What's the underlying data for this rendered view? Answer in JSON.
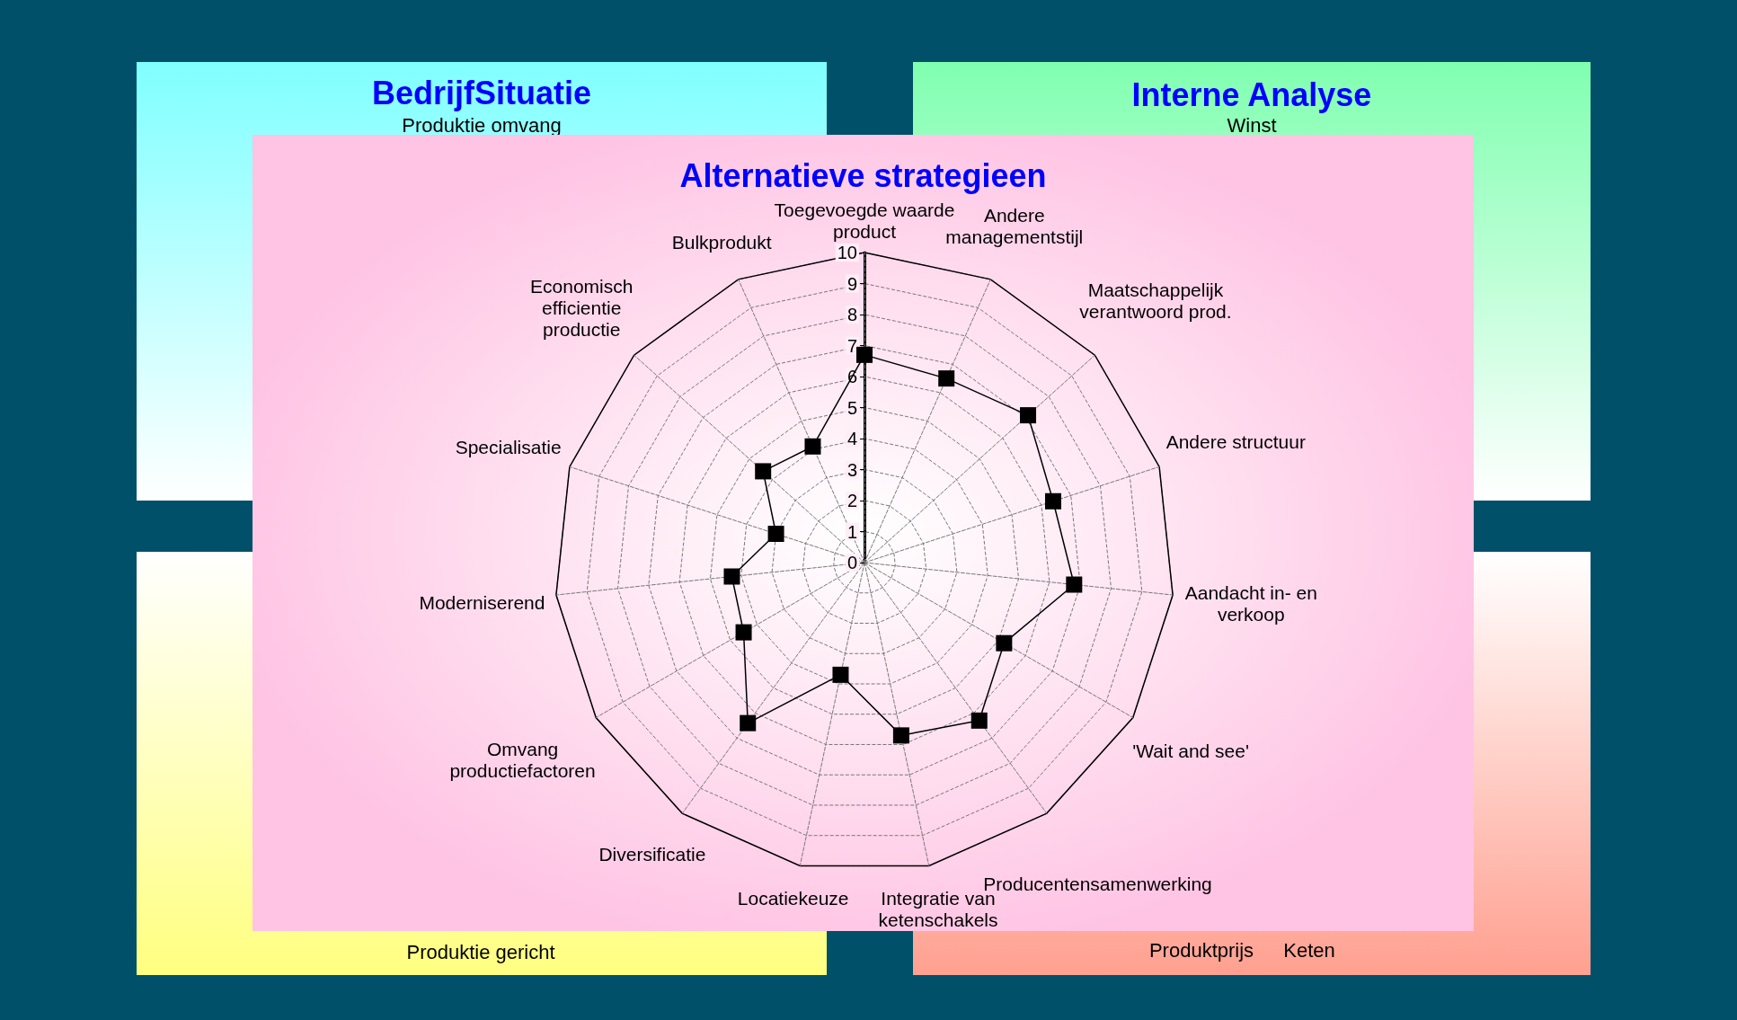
{
  "chart_data": [
    {
      "type": "other",
      "title": "BedrijfSituatie",
      "annotations": [
        "Produktie omvang"
      ]
    },
    {
      "type": "other",
      "title": "Interne Analyse",
      "annotations": [
        "Winst"
      ]
    },
    {
      "type": "radar",
      "title": "Alternatieve strategieen",
      "categories": [
        "Toegevoegde waarde product",
        "Andere managementstijl",
        "Maatschappelijk verantwoord prod.",
        "Andere structuur",
        "Aandacht in- en verkoop",
        "'Wait and see'",
        "Producentensamenwerking",
        "Integratie van ketenschakels",
        "Locatiekeuze",
        "Diversificatie",
        "Omvang productiefactoren",
        "Moderniserend",
        "Specialisatie",
        "Economisch efficientie productie",
        "Bulkprodukt"
      ],
      "series": [
        {
          "color": "#000000",
          "values": [
            6.7,
            6.5,
            7.1,
            6.4,
            6.8,
            5.2,
            6.3,
            5.7,
            3.7,
            6.4,
            4.5,
            4.3,
            3.0,
            4.4,
            4.1
          ]
        }
      ],
      "ylim": [
        0,
        10
      ],
      "yticks": [
        0,
        1,
        2,
        3,
        4,
        5,
        6,
        7,
        8,
        9,
        10
      ],
      "grid": true,
      "marker": "square",
      "line_style": "solid"
    },
    {
      "type": "other",
      "annotations": [
        "Produktie gericht"
      ]
    },
    {
      "type": "other",
      "annotations": [
        "Produktprijs",
        "Keten"
      ]
    }
  ]
}
